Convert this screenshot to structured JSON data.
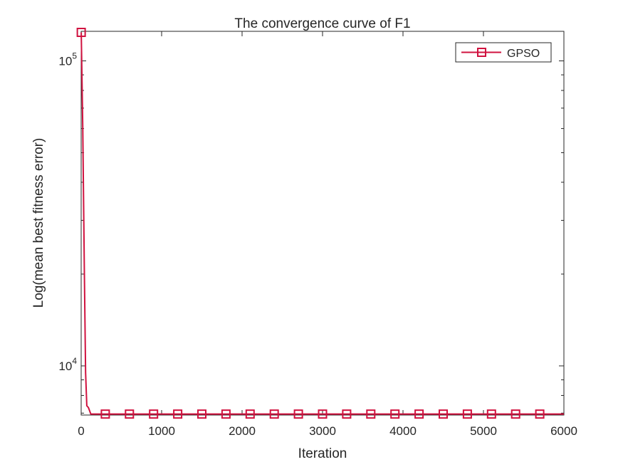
{
  "chart_data": {
    "type": "line",
    "title": "The convergence curve of F1",
    "xlabel": "Iteration",
    "ylabel": "Log(mean best fitness error)",
    "xlim": [
      0,
      6000
    ],
    "ylim": [
      6900,
      125000
    ],
    "yscale": "log",
    "xticks": [
      0,
      1000,
      2000,
      3000,
      4000,
      5000,
      6000
    ],
    "yticks": [
      {
        "value": 10000,
        "base": "10",
        "exp": "4"
      },
      {
        "value": 100000,
        "base": "10",
        "exp": "5"
      }
    ],
    "grid": false,
    "legend_position": "top-right",
    "series": [
      {
        "name": "GPSO",
        "color": "#d0123f",
        "marker": "square",
        "x": [
          1,
          20,
          40,
          55,
          70,
          90,
          120,
          300,
          600,
          900,
          1200,
          1500,
          1800,
          2100,
          2400,
          2700,
          3000,
          3300,
          3600,
          3900,
          4200,
          4500,
          4800,
          5100,
          5400,
          5700,
          6000
        ],
        "y": [
          124000,
          60000,
          20000,
          9500,
          7400,
          7300,
          6950,
          6950,
          6950,
          6950,
          6950,
          6950,
          6950,
          6950,
          6950,
          6950,
          6950,
          6950,
          6950,
          6950,
          6950,
          6950,
          6950,
          6950,
          6950,
          6950,
          6950
        ],
        "marker_x": [
          1,
          300,
          600,
          900,
          1200,
          1500,
          1800,
          2100,
          2400,
          2700,
          3000,
          3300,
          3600,
          3900,
          4200,
          4500,
          4800,
          5100,
          5400,
          5700
        ]
      }
    ]
  }
}
